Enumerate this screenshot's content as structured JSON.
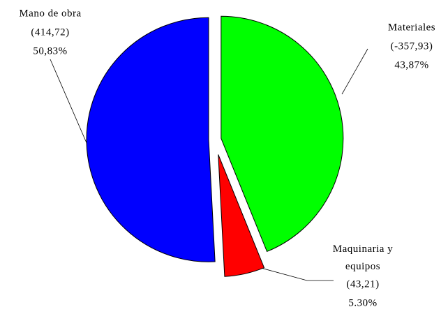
{
  "chart_data": {
    "type": "pie",
    "categories": [
      "Materiales",
      "Maquinaria y equipos",
      "Mano de obra"
    ],
    "values": [
      43.87,
      5.3,
      50.83
    ],
    "value_labels": [
      "43,87%",
      "5.30%",
      "50,83%"
    ],
    "amounts": [
      -357.93,
      43.21,
      414.72
    ],
    "amount_labels": [
      "(-357,93)",
      "(43,21)",
      "(414,72)"
    ],
    "colors": [
      "#00ff00",
      "#ff0000",
      "#0000ff"
    ]
  }
}
